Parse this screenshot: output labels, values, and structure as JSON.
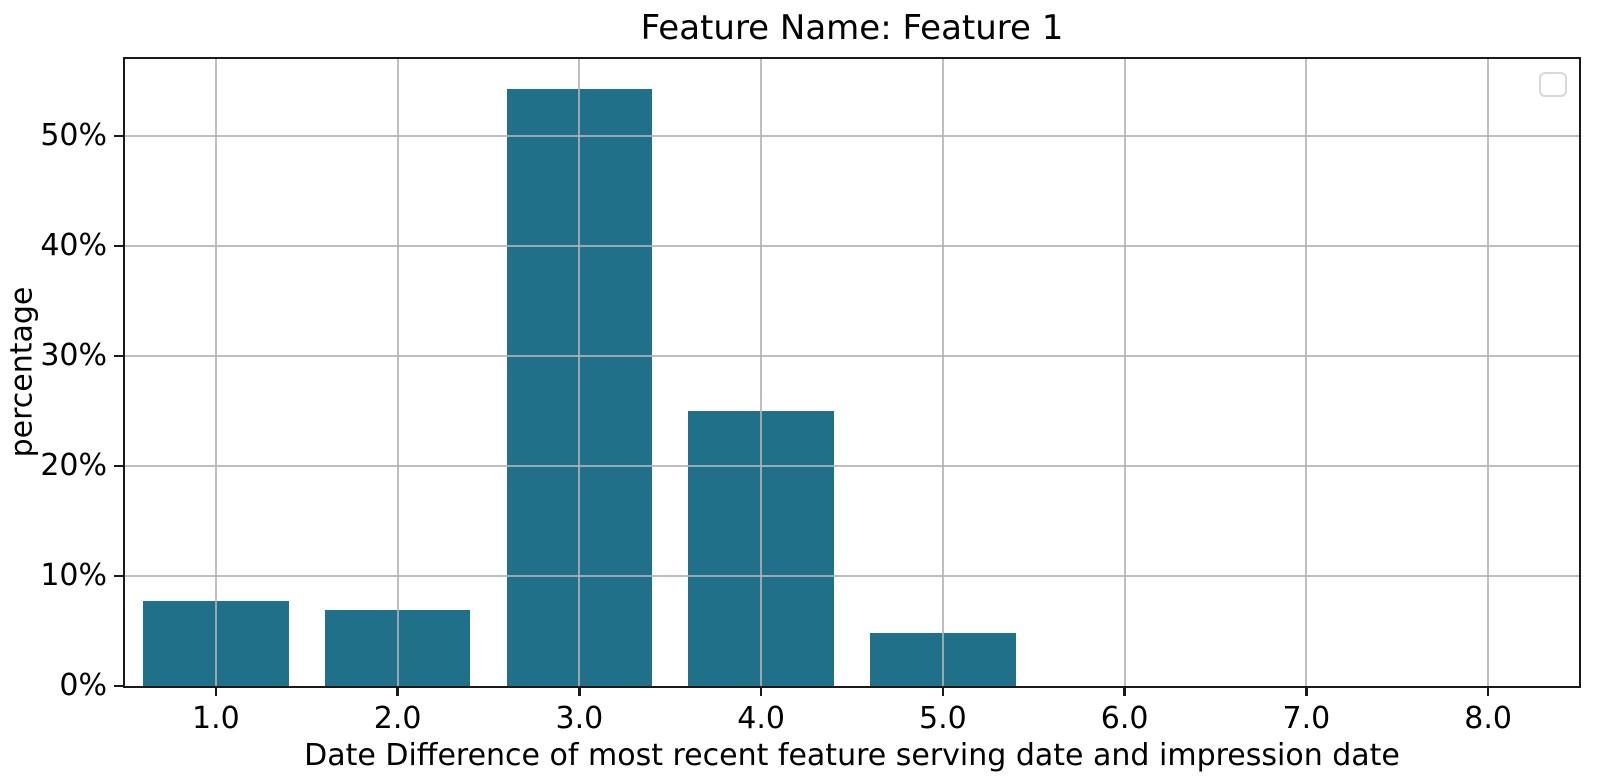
{
  "chart_data": {
    "type": "bar",
    "title": "Feature Name: Feature 1",
    "xlabel": "Date Difference of most recent feature serving date and impression date",
    "ylabel": "percentage",
    "x": [
      1.0,
      2.0,
      3.0,
      4.0,
      5.0
    ],
    "values": [
      7.7,
      6.9,
      54.3,
      25.0,
      4.8
    ],
    "bar_width": 0.8,
    "xlim": [
      0.5,
      8.5
    ],
    "ylim": [
      0,
      57
    ],
    "xticks": [
      1,
      2,
      3,
      4,
      5,
      6,
      7,
      8
    ],
    "xtick_labels": [
      "1.0",
      "2.0",
      "3.0",
      "4.0",
      "5.0",
      "6.0",
      "7.0",
      "8.0"
    ],
    "yticks": [
      0,
      10,
      20,
      30,
      40,
      50
    ],
    "ytick_labels": [
      "0%",
      "10%",
      "20%",
      "30%",
      "40%",
      "50%"
    ],
    "grid": true,
    "grid_above_bars": true,
    "legend": {
      "visible": true,
      "entries": []
    },
    "colors": {
      "bar": "#1f7088",
      "grid": "#b3b3b3",
      "spine": "#1a1a1a",
      "text": "#000000",
      "legend_border": "#d8d8d8",
      "background": "#ffffff"
    }
  }
}
